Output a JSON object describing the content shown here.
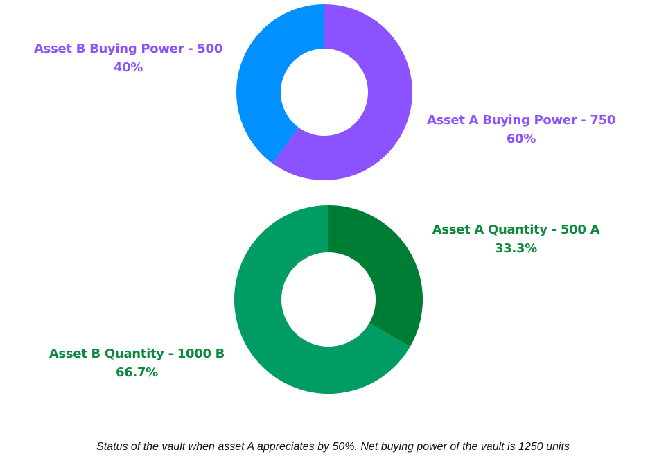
{
  "chart_data": [
    {
      "type": "pie",
      "variant": "donut",
      "categories": [
        "Asset A Buying Power",
        "Asset B Buying Power"
      ],
      "values": [
        750,
        500
      ],
      "percent_labels": [
        "60%",
        "40%"
      ],
      "slice_labels": [
        "Asset A Buying Power - 750",
        "Asset B Buying Power - 500"
      ],
      "colors": [
        "#8c52ff",
        "#0090ff"
      ],
      "label_color": "#8c52ff"
    },
    {
      "type": "pie",
      "variant": "donut",
      "categories": [
        "Asset A Quantity",
        "Asset B Quantity"
      ],
      "values": [
        500,
        1000
      ],
      "percent_labels": [
        "33.3%",
        "66.7%"
      ],
      "slice_labels": [
        "Asset A Quantity - 500 A",
        "Asset B Quantity - 1000 B"
      ],
      "colors": [
        "#007d35",
        "#009c64"
      ],
      "label_color": "#0b8a3e"
    }
  ],
  "caption": "Status of the vault when asset A appreciates by 50%. Net buying power of the vault is 1250 units"
}
